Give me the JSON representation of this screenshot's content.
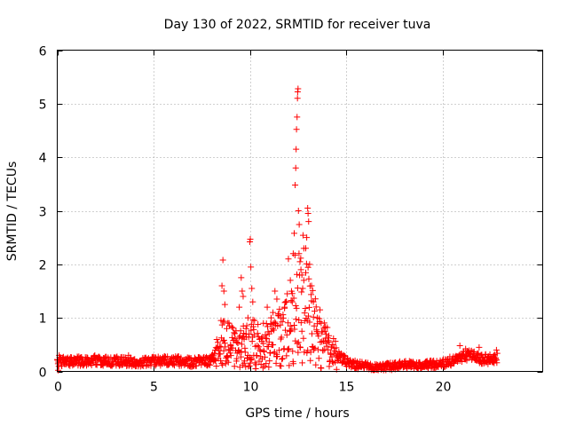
{
  "chart_data": {
    "type": "scatter",
    "title": "Day 130 of 2022, SRMTID for receiver tuva",
    "xlabel": "GPS time / hours",
    "ylabel": "SRMTID / TECUs",
    "xlim": [
      0,
      25.2
    ],
    "ylim": [
      0,
      6
    ],
    "x_ticks": [
      0,
      5,
      10,
      15,
      20
    ],
    "y_ticks": [
      0,
      1,
      2,
      3,
      4,
      5,
      6
    ],
    "grid": true,
    "marker": "plus",
    "series": [
      {
        "name": "tuva",
        "color": "#ff0000",
        "base_profile": [
          [
            0.0,
            0.18
          ],
          [
            1.0,
            0.19
          ],
          [
            2.0,
            0.2
          ],
          [
            3.0,
            0.19
          ],
          [
            4.0,
            0.17
          ],
          [
            5.0,
            0.19
          ],
          [
            6.0,
            0.2
          ],
          [
            7.0,
            0.17
          ],
          [
            8.0,
            0.2
          ],
          [
            8.3,
            0.35
          ],
          [
            8.6,
            0.6
          ],
          [
            9.0,
            0.45
          ],
          [
            9.5,
            0.4
          ],
          [
            10.0,
            0.55
          ],
          [
            10.5,
            0.45
          ],
          [
            11.0,
            0.5
          ],
          [
            11.5,
            0.6
          ],
          [
            12.0,
            0.8
          ],
          [
            12.3,
            1.2
          ],
          [
            12.6,
            1.5
          ],
          [
            13.0,
            1.1
          ],
          [
            13.5,
            0.7
          ],
          [
            14.0,
            0.45
          ],
          [
            14.5,
            0.3
          ],
          [
            15.0,
            0.18
          ],
          [
            15.5,
            0.12
          ],
          [
            16.0,
            0.1
          ],
          [
            16.5,
            0.07
          ],
          [
            17.0,
            0.08
          ],
          [
            17.5,
            0.1
          ],
          [
            18.0,
            0.12
          ],
          [
            19.0,
            0.12
          ],
          [
            20.0,
            0.15
          ],
          [
            20.5,
            0.2
          ],
          [
            21.0,
            0.28
          ],
          [
            21.5,
            0.3
          ],
          [
            22.0,
            0.22
          ],
          [
            22.8,
            0.25
          ]
        ],
        "points": [
          [
            0.05,
            0.02
          ],
          [
            0.1,
            0.3
          ],
          [
            1.95,
            0.3
          ],
          [
            3.7,
            0.3
          ],
          [
            6.3,
            0.28
          ],
          [
            8.5,
            0.95
          ],
          [
            8.55,
            1.6
          ],
          [
            8.6,
            2.08
          ],
          [
            8.65,
            1.5
          ],
          [
            8.7,
            1.25
          ],
          [
            8.8,
            0.8
          ],
          [
            9.0,
            0.5
          ],
          [
            9.3,
            0.55
          ],
          [
            9.45,
            1.2
          ],
          [
            9.55,
            1.75
          ],
          [
            9.6,
            1.5
          ],
          [
            9.65,
            1.4
          ],
          [
            9.7,
            0.6
          ],
          [
            9.8,
            0.8
          ],
          [
            9.9,
            1.0
          ],
          [
            10.0,
            2.42
          ],
          [
            10.02,
            2.47
          ],
          [
            10.05,
            1.95
          ],
          [
            10.1,
            1.55
          ],
          [
            10.15,
            1.3
          ],
          [
            10.2,
            0.3
          ],
          [
            10.3,
            0.05
          ],
          [
            10.5,
            0.6
          ],
          [
            10.7,
            0.9
          ],
          [
            10.9,
            1.2
          ],
          [
            11.0,
            0.7
          ],
          [
            11.1,
            1.0
          ],
          [
            11.2,
            1.1
          ],
          [
            11.3,
            1.5
          ],
          [
            11.4,
            1.35
          ],
          [
            11.6,
            1.0
          ],
          [
            11.8,
            1.2
          ],
          [
            11.9,
            1.3
          ],
          [
            12.0,
            2.1
          ],
          [
            12.1,
            1.7
          ],
          [
            12.2,
            1.3
          ],
          [
            12.25,
            2.2
          ],
          [
            12.3,
            2.58
          ],
          [
            12.35,
            3.48
          ],
          [
            12.38,
            3.8
          ],
          [
            12.4,
            4.15
          ],
          [
            12.42,
            4.52
          ],
          [
            12.45,
            4.75
          ],
          [
            12.47,
            5.1
          ],
          [
            12.48,
            5.22
          ],
          [
            12.5,
            5.28
          ],
          [
            12.52,
            3.0
          ],
          [
            12.55,
            2.2
          ],
          [
            12.6,
            2.05
          ],
          [
            12.65,
            1.9
          ],
          [
            12.7,
            1.8
          ],
          [
            12.8,
            1.7
          ],
          [
            12.9,
            2.3
          ],
          [
            12.95,
            2.5
          ],
          [
            13.0,
            3.05
          ],
          [
            13.02,
            2.95
          ],
          [
            13.05,
            2.8
          ],
          [
            13.1,
            2.0
          ],
          [
            13.2,
            1.6
          ],
          [
            13.3,
            1.3
          ],
          [
            13.5,
            1.0
          ],
          [
            13.7,
            0.9
          ],
          [
            13.9,
            0.75
          ],
          [
            14.1,
            0.55
          ],
          [
            14.3,
            0.5
          ],
          [
            20.9,
            0.48
          ],
          [
            21.2,
            0.42
          ],
          [
            21.9,
            0.45
          ],
          [
            22.8,
            0.4
          ]
        ]
      }
    ]
  }
}
